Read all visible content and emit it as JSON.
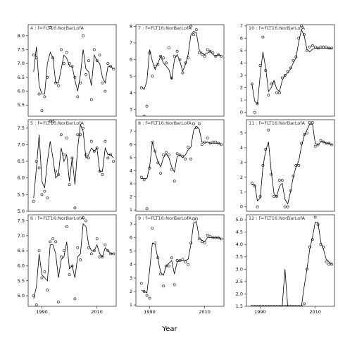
{
  "figure": {
    "xlabel": "Year"
  },
  "chart_data": [
    {
      "type": "scatter",
      "title": "4 : f=FLT16:NorBarLofA",
      "x": [
        1987,
        1988,
        1989,
        1990,
        1991,
        1992,
        1993,
        1994,
        1995,
        1996,
        1997,
        1998,
        1999,
        2000,
        2001,
        2002,
        2003,
        2004,
        2005,
        2006,
        2007,
        2008,
        2009,
        2010,
        2011,
        2012,
        2013,
        2014,
        2015,
        2016
      ],
      "points": [
        7.3,
        7.2,
        5.9,
        5.3,
        5.8,
        6.5,
        8.3,
        7.2,
        6.3,
        6.2,
        7.5,
        7.0,
        7.4,
        7.0,
        6.9,
        6.5,
        5.8,
        6.3,
        8.0,
        6.6,
        7.1,
        5.7,
        7.5,
        7.1,
        7.3,
        6.3,
        6.0,
        7.0,
        6.9,
        6.8
      ],
      "fit": [
        6.7,
        7.6,
        6.2,
        5.9,
        5.9,
        7.0,
        7.4,
        7.2,
        6.3,
        6.3,
        6.8,
        7.3,
        7.2,
        6.9,
        6.9,
        6.4,
        6.0,
        6.6,
        7.5,
        6.8,
        6.7,
        6.2,
        7.3,
        7.1,
        7.0,
        6.5,
        6.3,
        6.9,
        6.9,
        6.8
      ],
      "ylim": [
        5.1,
        8.4
      ],
      "yticks": [
        5.5,
        6.0,
        6.5,
        7.0,
        7.5,
        8.0
      ]
    },
    {
      "type": "scatter",
      "title": "7 : f=FLT16:NorBarLofA",
      "x": [
        1987,
        1988,
        1989,
        1990,
        1991,
        1992,
        1993,
        1994,
        1995,
        1996,
        1997,
        1998,
        1999,
        2000,
        2001,
        2002,
        2003,
        2004,
        2005,
        2006,
        2007,
        2008,
        2009,
        2010,
        2011,
        2012,
        2013,
        2014,
        2015,
        2016
      ],
      "points": [
        4.3,
        2.6,
        3.2,
        6.4,
        5.0,
        5.6,
        5.7,
        6.2,
        6.1,
        5.8,
        6.7,
        4.9,
        6.2,
        6.5,
        6.0,
        5.2,
        5.8,
        6.1,
        8.0,
        7.5,
        7.8,
        6.4,
        6.3,
        6.2,
        6.6,
        6.5,
        6.4,
        6.2,
        6.3,
        6.2
      ],
      "fit": [
        4.4,
        4.2,
        4.7,
        6.6,
        5.9,
        5.4,
        5.8,
        6.2,
        5.8,
        5.6,
        5.4,
        4.8,
        6.0,
        6.3,
        5.9,
        5.3,
        5.7,
        6.3,
        7.5,
        7.7,
        7.6,
        6.6,
        6.4,
        6.3,
        6.4,
        6.5,
        6.3,
        6.2,
        6.3,
        6.2
      ],
      "ylim": [
        2.6,
        8.1
      ],
      "yticks": [
        3,
        4,
        5,
        6,
        7,
        8
      ]
    },
    {
      "type": "scatter",
      "title": "10 : f=FLT16:NorBarLofA",
      "x": [
        1987,
        1988,
        1989,
        1990,
        1991,
        1992,
        1993,
        1994,
        1995,
        1996,
        1997,
        1998,
        1999,
        2000,
        2001,
        2002,
        2003,
        2004,
        2005,
        2006,
        2007,
        2008,
        2009,
        2010,
        2011,
        2012,
        2013,
        2014,
        2015,
        2016
      ],
      "points": [
        2.3,
        0.0,
        0.7,
        3.8,
        6.1,
        3.4,
        1.4,
        2.3,
        2.4,
        1.6,
        1.6,
        2.8,
        3.0,
        3.3,
        3.6,
        4.2,
        4.5,
        6.0,
        7.0,
        6.3,
        5.0,
        5.3,
        5.4,
        5.3,
        5.2,
        5.3,
        5.3,
        5.3,
        5.2,
        5.2
      ],
      "fit": [
        2.3,
        0.9,
        0.7,
        3.0,
        4.9,
        3.6,
        1.7,
        2.0,
        2.6,
        1.9,
        1.7,
        2.6,
        3.0,
        3.2,
        3.5,
        4.0,
        4.4,
        5.7,
        6.7,
        6.2,
        5.1,
        4.9,
        5.1,
        5.2,
        5.2,
        5.2,
        5.2,
        5.2,
        5.2,
        5.2
      ],
      "ylim": [
        -0.3,
        7.1
      ],
      "yticks": [
        0,
        1,
        2,
        3,
        4,
        5,
        6,
        7
      ]
    },
    {
      "type": "scatter",
      "title": "5 : f=FLT16:NorBarLofA",
      "x": [
        1987,
        1988,
        1989,
        1990,
        1991,
        1992,
        1993,
        1994,
        1995,
        1996,
        1997,
        1998,
        1999,
        2000,
        2001,
        2002,
        2003,
        2004,
        2005,
        2006,
        2007,
        2008,
        2009,
        2010,
        2011,
        2012,
        2013,
        2014,
        2015,
        2016
      ],
      "points": [
        5.3,
        6.5,
        6.3,
        5.5,
        5.6,
        5.4,
        7.7,
        7.7,
        6.2,
        6.1,
        7.3,
        6.7,
        7.2,
        5.8,
        6.6,
        5.1,
        7.3,
        7.3,
        7.5,
        6.7,
        6.6,
        7.1,
        6.8,
        6.9,
        6.2,
        6.1,
        7.1,
        6.6,
        6.7,
        6.5
      ],
      "fit": [
        5.4,
        6.3,
        7.3,
        5.9,
        5.7,
        6.5,
        7.1,
        6.6,
        6.0,
        6.1,
        6.9,
        6.5,
        6.7,
        5.9,
        6.6,
        5.8,
        6.9,
        7.6,
        7.4,
        6.6,
        6.7,
        6.9,
        6.8,
        6.9,
        6.2,
        6.2,
        6.9,
        6.7,
        6.7,
        6.6
      ],
      "ylim": [
        5.0,
        7.75
      ],
      "yticks": [
        5.0,
        5.5,
        6.0,
        6.5,
        7.0,
        7.5
      ]
    },
    {
      "type": "scatter",
      "title": "8 : f=FLT16:NorBarLofA",
      "x": [
        1987,
        1988,
        1989,
        1990,
        1991,
        1992,
        1993,
        1994,
        1995,
        1996,
        1997,
        1998,
        1999,
        2000,
        2001,
        2002,
        2003,
        2004,
        2005,
        2006,
        2007,
        2008,
        2009,
        2010,
        2011,
        2012,
        2013,
        2014,
        2015,
        2016
      ],
      "points": [
        3.5,
        3.3,
        1.1,
        4.2,
        6.2,
        5.5,
        4.6,
        3.8,
        5.2,
        5.4,
        5.2,
        4.1,
        3.2,
        5.3,
        5.2,
        5.1,
        4.9,
        5.8,
        4.9,
        7.6,
        7.3,
        7.6,
        6.0,
        6.2,
        6.5,
        6.1,
        6.2,
        6.2,
        6.1,
        6.0
      ],
      "fit": [
        3.4,
        3.4,
        3.4,
        4.3,
        6.2,
        5.4,
        4.7,
        4.3,
        5.0,
        5.3,
        5.0,
        4.3,
        3.9,
        5.1,
        5.2,
        5.0,
        5.2,
        5.6,
        5.8,
        7.1,
        7.4,
        7.2,
        6.2,
        6.1,
        6.2,
        6.1,
        6.1,
        6.1,
        6.1,
        6.0
      ],
      "ylim": [
        0.9,
        7.9
      ],
      "yticks": [
        1,
        2,
        3,
        4,
        5,
        6,
        7
      ]
    },
    {
      "type": "scatter",
      "title": "11 : f=FLT16:NorBarLofA",
      "x": [
        1987,
        1988,
        1989,
        1990,
        1991,
        1992,
        1993,
        1994,
        1995,
        1996,
        1997,
        1998,
        1999,
        2000,
        2001,
        2002,
        2003,
        2004,
        2005,
        2006,
        2007,
        2008,
        2009,
        2010,
        2011,
        2012,
        2013,
        2014,
        2015,
        2016
      ],
      "points": [
        1.6,
        1.4,
        0.0,
        0.7,
        2.8,
        3.9,
        5.2,
        2.2,
        0.7,
        0.7,
        1.8,
        1.8,
        0.0,
        0.0,
        1.1,
        2.1,
        2.8,
        2.8,
        4.3,
        4.9,
        5.0,
        5.7,
        5.7,
        4.1,
        4.2,
        4.5,
        4.4,
        4.3,
        4.3,
        4.2
      ],
      "fit": [
        1.5,
        1.5,
        0.4,
        0.6,
        2.7,
        3.8,
        4.4,
        2.4,
        0.9,
        0.7,
        1.4,
        1.6,
        0.5,
        0.2,
        1.0,
        2.0,
        2.7,
        3.1,
        4.1,
        4.8,
        5.2,
        5.6,
        5.6,
        4.3,
        4.2,
        4.4,
        4.4,
        4.3,
        4.3,
        4.2
      ],
      "ylim": [
        -0.3,
        5.9
      ],
      "yticks": [
        0,
        1,
        2,
        3,
        4,
        5
      ]
    },
    {
      "type": "scatter",
      "title": "6 : f=FLT16:NorBarLofA",
      "x": [
        1987,
        1988,
        1989,
        1990,
        1991,
        1992,
        1993,
        1994,
        1995,
        1996,
        1997,
        1998,
        1999,
        2000,
        2001,
        2002,
        2003,
        2004,
        2005,
        2006,
        2007,
        2008,
        2009,
        2010,
        2011,
        2012,
        2013,
        2014,
        2015,
        2016
      ],
      "points": [
        5.0,
        4.7,
        6.5,
        5.6,
        5.8,
        5.2,
        6.8,
        6.9,
        6.8,
        4.8,
        6.3,
        6.5,
        7.3,
        5.7,
        6.0,
        4.9,
        6.6,
        6.2,
        7.6,
        7.5,
        6.6,
        6.4,
        6.5,
        6.9,
        6.3,
        6.3,
        6.7,
        6.5,
        6.4,
        6.4
      ],
      "fit": [
        4.9,
        5.3,
        6.4,
        5.7,
        5.6,
        5.5,
        6.7,
        6.7,
        6.4,
        5.6,
        6.2,
        6.3,
        6.8,
        5.9,
        6.0,
        5.6,
        6.3,
        6.4,
        7.4,
        7.3,
        6.7,
        6.5,
        6.5,
        6.7,
        6.4,
        6.3,
        6.6,
        6.5,
        6.4,
        6.4
      ],
      "ylim": [
        4.65,
        7.7
      ],
      "yticks": [
        5.0,
        5.5,
        6.0,
        6.5,
        7.0,
        7.5
      ]
    },
    {
      "type": "scatter",
      "title": "9 : f=FLT16:NorBarLofA",
      "x": [
        1987,
        1988,
        1989,
        1990,
        1991,
        1992,
        1993,
        1994,
        1995,
        1996,
        1997,
        1998,
        1999,
        2000,
        2001,
        2002,
        2003,
        2004,
        2005,
        2006,
        2007,
        2008,
        2009,
        2010,
        2011,
        2012,
        2013,
        2014,
        2015,
        2016
      ],
      "points": [
        2.6,
        2.0,
        1.7,
        1.5,
        6.7,
        5.6,
        4.5,
        3.3,
        2.4,
        3.9,
        3.9,
        4.5,
        2.5,
        4.3,
        4.3,
        4.4,
        4.2,
        4.0,
        5.6,
        7.4,
        7.4,
        5.9,
        5.7,
        5.6,
        6.2,
        6.1,
        6.0,
        6.0,
        6.0,
        5.9
      ],
      "fit": [
        2.1,
        2.0,
        1.9,
        3.6,
        5.6,
        5.5,
        4.4,
        3.4,
        3.2,
        3.9,
        4.1,
        4.3,
        3.3,
        4.2,
        4.3,
        4.3,
        4.3,
        4.4,
        5.5,
        7.1,
        7.2,
        6.0,
        5.8,
        5.7,
        6.0,
        6.0,
        6.0,
        6.0,
        6.0,
        5.9
      ],
      "ylim": [
        0.9,
        7.7
      ],
      "yticks": [
        1,
        2,
        3,
        4,
        5,
        6,
        7
      ]
    },
    {
      "type": "scatter",
      "title": "12 : f=FLT16:NorBarLofA",
      "x": [
        1987,
        1988,
        1989,
        1990,
        1991,
        1992,
        1993,
        1994,
        1995,
        1996,
        1997,
        1998,
        1999,
        2000,
        2001,
        2002,
        2003,
        2004,
        2005,
        2006,
        2007,
        2008,
        2009,
        2010,
        2011,
        2012,
        2013,
        2014,
        2015,
        2016
      ],
      "points": [
        1.5,
        1.5,
        1.5,
        1.5,
        1.5,
        1.5,
        1.5,
        1.5,
        1.5,
        1.5,
        1.5,
        1.5,
        1.5,
        1.5,
        1.5,
        1.5,
        1.5,
        1.5,
        1.5,
        1.6,
        3.0,
        3.9,
        4.2,
        5.1,
        4.8,
        4.0,
        3.9,
        3.3,
        3.2,
        3.2
      ],
      "fit": [
        1.5,
        1.5,
        1.5,
        1.5,
        1.5,
        1.5,
        1.5,
        1.5,
        1.5,
        1.5,
        1.5,
        1.5,
        3.0,
        1.5,
        1.5,
        1.5,
        1.5,
        1.5,
        1.5,
        2.3,
        3.0,
        3.8,
        4.3,
        4.9,
        4.9,
        4.1,
        3.8,
        3.4,
        3.3,
        3.2
      ],
      "ylim": [
        1.5,
        5.2
      ],
      "yticks": [
        1.5,
        2.0,
        2.5,
        3.0,
        3.5,
        4.0,
        4.5,
        5.0
      ]
    }
  ],
  "xaxis": {
    "ticks": [
      1990,
      2010
    ]
  }
}
